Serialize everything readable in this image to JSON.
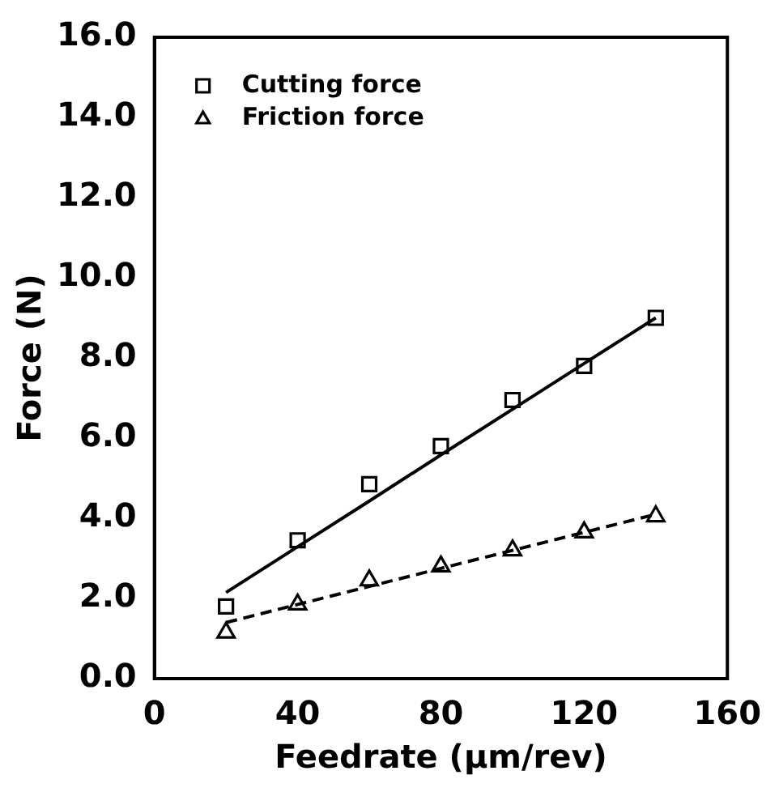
{
  "chart_data": {
    "type": "scatter",
    "xlabel": "Feedrate (μm/rev)",
    "ylabel": "Force (N)",
    "xlim": [
      0,
      160
    ],
    "xticks": [
      0,
      40,
      80,
      120,
      160
    ],
    "ylim": [
      0,
      16
    ],
    "yticks": [
      {
        "value": 0,
        "label": "0.0"
      },
      {
        "value": 2,
        "label": "2.0"
      },
      {
        "value": 4,
        "label": "4.0"
      },
      {
        "value": 6,
        "label": "6.0"
      },
      {
        "value": 8,
        "label": "8.0"
      },
      {
        "value": 10,
        "label": "10.0"
      },
      {
        "value": 12,
        "label": "12.0"
      },
      {
        "value": 14,
        "label": "14.0"
      },
      {
        "value": 16,
        "label": "16.0"
      }
    ],
    "grid": false,
    "legend": "top left",
    "x": [
      20,
      40,
      60,
      80,
      100,
      120,
      140
    ],
    "series": [
      {
        "name": "Cutting force",
        "color": "#000000",
        "marker": "square",
        "values": [
          1.8,
          3.45,
          4.85,
          5.8,
          6.95,
          7.8,
          9.0
        ]
      },
      {
        "name": "Friction force",
        "color": "#000000",
        "marker": "triangle",
        "values": [
          1.15,
          1.85,
          2.45,
          2.8,
          3.2,
          3.65,
          4.05
        ]
      },
      {
        "type": "line",
        "color": "#000000",
        "values": [
          2.15,
          3.29,
          4.43,
          5.58,
          6.72,
          7.86,
          9.0
        ],
        "line_style": "solid",
        "marker": "none"
      },
      {
        "type": "line",
        "color": "#000000",
        "values": [
          1.4,
          1.85,
          2.3,
          2.75,
          3.2,
          3.65,
          4.1
        ],
        "line_style": "dashed",
        "marker": "none"
      }
    ]
  }
}
